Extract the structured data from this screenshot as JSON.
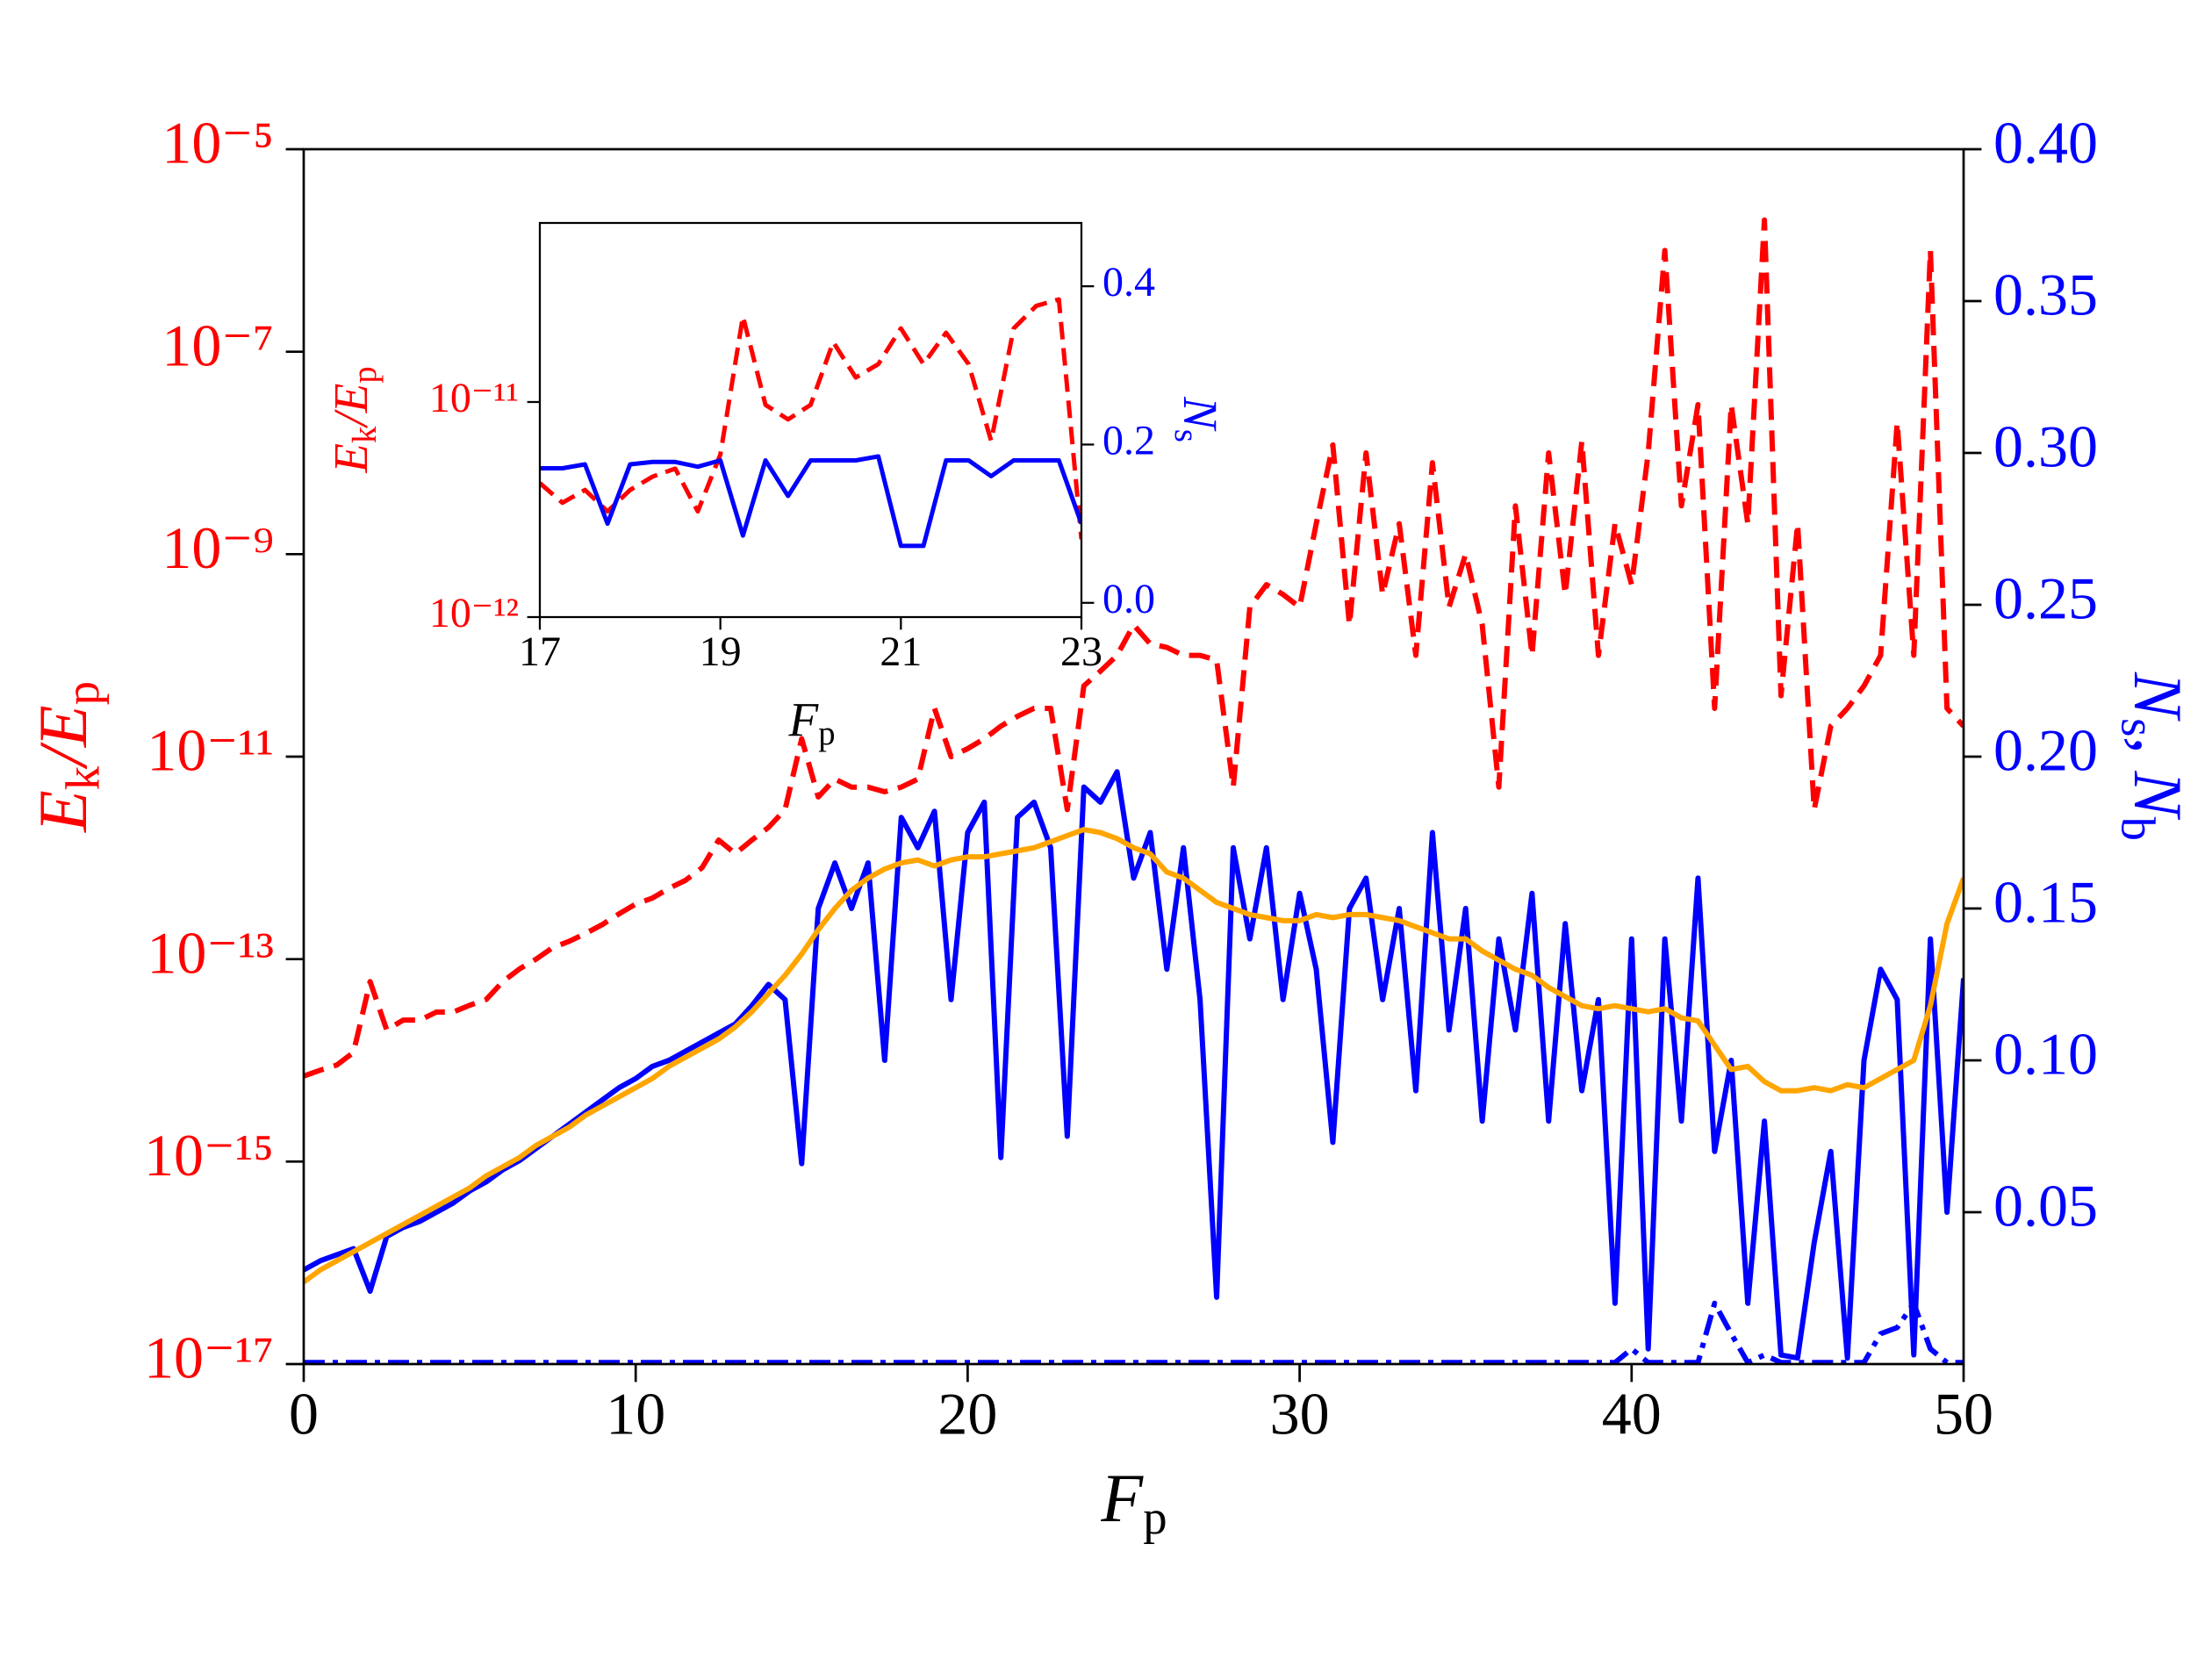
{
  "chart_data": [
    {
      "type": "line",
      "xlabel": [
        "F",
        "p"
      ],
      "ylabel": [
        "E",
        "k",
        "/E",
        "p"
      ],
      "y2label": [
        "N",
        "s",
        ", N",
        "b"
      ],
      "ycolor": "#ff0000",
      "y2color": "#0000ff",
      "xlim": [
        0,
        50
      ],
      "xticks": [
        0,
        10,
        20,
        30,
        40,
        50
      ],
      "ylog": true,
      "ylim": [
        1e-17,
        1e-05
      ],
      "yticks": [
        {
          "value": 1e-17,
          "label": "10⁻¹⁷"
        },
        {
          "value": 1e-15,
          "label": "10⁻¹⁵"
        },
        {
          "value": 1e-13,
          "label": "10⁻¹³"
        },
        {
          "value": 1e-11,
          "label": "10⁻¹¹"
        },
        {
          "value": 1e-09,
          "label": "10⁻⁹"
        },
        {
          "value": 1e-07,
          "label": "10⁻⁷"
        },
        {
          "value": 1e-05,
          "label": "10⁻⁵"
        }
      ],
      "y2lim": [
        0,
        0.4
      ],
      "y2ticks": [
        0.05,
        {
          "value": 0.1,
          "label": "0.10"
        },
        0.15,
        {
          "value": 0.2,
          "label": "0.20"
        },
        0.25,
        {
          "value": 0.3,
          "label": "0.30"
        },
        0.35,
        {
          "value": 0.4,
          "label": "0.40"
        }
      ],
      "x": [
        0,
        0.5,
        1,
        1.5,
        2,
        2.5,
        3,
        3.5,
        4,
        4.5,
        5,
        5.5,
        6,
        6.5,
        7,
        7.5,
        8,
        8.5,
        9,
        9.5,
        10,
        10.5,
        11,
        11.5,
        12,
        12.5,
        13,
        13.5,
        14,
        14.5,
        15,
        15.5,
        16,
        16.5,
        17,
        17.5,
        18,
        18.5,
        19,
        19.5,
        20,
        20.5,
        21,
        21.5,
        22,
        22.5,
        23,
        23.5,
        24,
        24.5,
        25,
        25.5,
        26,
        26.5,
        27,
        27.5,
        28,
        28.5,
        29,
        29.5,
        30,
        30.5,
        31,
        31.5,
        32,
        32.5,
        33,
        33.5,
        34,
        34.5,
        35,
        35.5,
        36,
        36.5,
        37,
        37.5,
        38,
        38.5,
        39,
        39.5,
        40,
        40.5,
        41,
        41.5,
        42,
        42.5,
        43,
        43.5,
        44,
        44.5,
        45,
        45.5,
        46,
        46.5,
        47,
        47.5,
        48,
        48.5,
        49,
        49.5,
        50
      ],
      "series": [
        {
          "color": "#ff0000",
          "linestyle": "dashed",
          "values": [
            7e-15,
            8e-15,
            9e-15,
            1.2e-14,
            6e-14,
            2e-14,
            2.5e-14,
            2.5e-14,
            3e-14,
            3e-14,
            3.5e-14,
            4e-14,
            6e-14,
            8e-14,
            1e-13,
            1.3e-13,
            1.5e-13,
            1.8e-13,
            2.2e-13,
            2.8e-13,
            3.5e-13,
            4e-13,
            5e-13,
            6e-13,
            8e-13,
            1.5e-12,
            1.1e-12,
            1.5e-12,
            2e-12,
            3e-12,
            1.5e-11,
            4e-12,
            6e-12,
            5e-12,
            5e-12,
            4.5e-12,
            5e-12,
            6e-12,
            3e-11,
            1e-11,
            1.2e-11,
            1.5e-11,
            2e-11,
            2.5e-11,
            3e-11,
            3e-11,
            3e-12,
            5e-11,
            7e-11,
            1e-10,
            2e-10,
            1.3e-10,
            1.2e-10,
            1e-10,
            1e-10,
            9e-11,
            5e-12,
            3e-10,
            5e-10,
            4e-10,
            3e-10,
            2e-09,
            1.2e-08,
            2e-10,
            1e-08,
            4e-10,
            2e-09,
            1e-10,
            8e-09,
            3e-10,
            1e-09,
            2e-10,
            5e-12,
            3e-09,
            1e-10,
            1e-08,
            4e-10,
            1.3e-08,
            1e-10,
            2e-09,
            5e-10,
            1e-08,
            1e-06,
            3e-09,
            3e-08,
            3e-11,
            3e-08,
            2e-09,
            2e-06,
            4e-11,
            2e-09,
            3e-12,
            2e-11,
            3e-11,
            5e-11,
            1e-10,
            2e-08,
            1e-10,
            1e-06,
            3e-11,
            2e-11
          ]
        },
        {
          "color": "#0000ff",
          "linestyle": "solid",
          "axis": "y2",
          "values": [
            0.031,
            0.034,
            0.036,
            0.038,
            0.024,
            0.042,
            0.045,
            0.047,
            0.05,
            0.053,
            0.057,
            0.06,
            0.064,
            0.067,
            0.071,
            0.075,
            0.079,
            0.083,
            0.087,
            0.091,
            0.094,
            0.098,
            0.1,
            0.103,
            0.106,
            0.109,
            0.112,
            0.118,
            0.125,
            0.12,
            0.066,
            0.15,
            0.165,
            0.15,
            0.165,
            0.1,
            0.18,
            0.17,
            0.182,
            0.12,
            0.175,
            0.185,
            0.068,
            0.18,
            0.185,
            0.17,
            0.075,
            0.19,
            0.185,
            0.195,
            0.16,
            0.175,
            0.13,
            0.17,
            0.12,
            0.022,
            0.17,
            0.14,
            0.17,
            0.12,
            0.155,
            0.13,
            0.073,
            0.15,
            0.16,
            0.12,
            0.15,
            0.09,
            0.175,
            0.11,
            0.15,
            0.08,
            0.14,
            0.11,
            0.155,
            0.08,
            0.145,
            0.09,
            0.12,
            0.02,
            0.14,
            0.005,
            0.14,
            0.08,
            0.16,
            0.07,
            0.1,
            0.02,
            0.08,
            0.003,
            0.002,
            0.04,
            0.07,
            0.002,
            0.1,
            0.13,
            0.12,
            0.003,
            0.14,
            0.05,
            0.127
          ]
        },
        {
          "color": "#0000ff",
          "linestyle": "dashdot",
          "axis": "y2",
          "values": [
            0.0005,
            0.0005,
            0.0005,
            0.0005,
            0.0005,
            0.0005,
            0.0005,
            0.0005,
            0.0005,
            0.0005,
            0.0005,
            0.0005,
            0.0005,
            0.0005,
            0.0005,
            0.0005,
            0.0005,
            0.0005,
            0.0005,
            0.0005,
            0.0005,
            0.0005,
            0.0005,
            0.0005,
            0.0005,
            0.0005,
            0.0005,
            0.0005,
            0.0005,
            0.0005,
            0.0005,
            0.0005,
            0.0005,
            0.0005,
            0.0005,
            0.0005,
            0.0005,
            0.0005,
            0.0005,
            0.0005,
            0.0005,
            0.0005,
            0.0005,
            0.0005,
            0.0005,
            0.0005,
            0.0005,
            0.0005,
            0.0005,
            0.0005,
            0.0005,
            0.0005,
            0.0005,
            0.0005,
            0.0005,
            0.0005,
            0.0005,
            0.0005,
            0.0005,
            0.0005,
            0.0005,
            0.0005,
            0.0005,
            0.0005,
            0.0005,
            0.0005,
            0.0005,
            0.0005,
            0.0005,
            0.0005,
            0.0005,
            0.0005,
            0.0005,
            0.0005,
            0.0005,
            0.0005,
            0.0005,
            0.0005,
            0.0005,
            0.0005,
            0.005,
            0.0005,
            0.0005,
            0.0005,
            0.0005,
            0.02,
            0.01,
            0.0005,
            0.003,
            0.0005,
            0.0005,
            0.0005,
            0.0005,
            0.0005,
            0.0005,
            0.01,
            0.012,
            0.02,
            0.005,
            0.0005,
            0.0005
          ]
        },
        {
          "color": "#ffa500",
          "linestyle": "solid",
          "axis": "y2",
          "values": [
            0.027,
            0.031,
            0.034,
            0.037,
            0.04,
            0.043,
            0.046,
            0.049,
            0.052,
            0.055,
            0.058,
            0.062,
            0.065,
            0.068,
            0.072,
            0.075,
            0.078,
            0.082,
            0.085,
            0.088,
            0.091,
            0.094,
            0.098,
            0.101,
            0.104,
            0.107,
            0.111,
            0.116,
            0.122,
            0.128,
            0.135,
            0.143,
            0.15,
            0.156,
            0.16,
            0.163,
            0.165,
            0.166,
            0.164,
            0.166,
            0.167,
            0.167,
            0.168,
            0.169,
            0.17,
            0.172,
            0.174,
            0.176,
            0.175,
            0.173,
            0.17,
            0.168,
            0.162,
            0.16,
            0.156,
            0.152,
            0.15,
            0.148,
            0.147,
            0.146,
            0.146,
            0.148,
            0.147,
            0.148,
            0.148,
            0.147,
            0.146,
            0.144,
            0.142,
            0.14,
            0.14,
            0.136,
            0.133,
            0.13,
            0.128,
            0.124,
            0.121,
            0.118,
            0.117,
            0.118,
            0.117,
            0.116,
            0.117,
            0.114,
            0.113,
            0.105,
            0.097,
            0.098,
            0.093,
            0.09,
            0.09,
            0.091,
            0.09,
            0.092,
            0.091,
            0.094,
            0.097,
            0.1,
            0.118,
            0.145,
            0.16
          ]
        }
      ]
    },
    {
      "type": "line",
      "xlabel": [
        "F",
        "p"
      ],
      "ylabel": [
        "E",
        "k",
        "/E",
        "p"
      ],
      "y2label": [
        "N",
        "s"
      ],
      "ycolor": "#ff0000",
      "y2color": "#0000ff",
      "xlim": [
        17,
        23
      ],
      "xticks": [
        17,
        19,
        21,
        23
      ],
      "ylog": true,
      "ylim": [
        1e-12,
        6.8e-11
      ],
      "yticks": [
        {
          "value": 1e-12,
          "label": "10⁻¹²"
        },
        {
          "value": 1e-11,
          "label": "10⁻¹¹"
        }
      ],
      "y2lim": [
        -0.018,
        0.48
      ],
      "y2ticks": [
        {
          "value": 0,
          "label": "0.0"
        },
        0.2,
        0.4
      ],
      "x": [
        17,
        17.25,
        17.5,
        17.75,
        18,
        18.25,
        18.5,
        18.75,
        19,
        19.25,
        19.5,
        19.75,
        20,
        20.25,
        20.5,
        20.75,
        21,
        21.25,
        21.5,
        21.75,
        22,
        22.25,
        22.5,
        22.75,
        23
      ],
      "series": [
        {
          "color": "#ff0000",
          "linestyle": "dashed",
          "values": [
            4.2e-12,
            3.4e-12,
            3.9e-12,
            3.1e-12,
            3.9e-12,
            4.5e-12,
            4.9e-12,
            3.1e-12,
            5.7e-12,
            2.5e-11,
            9.7e-12,
            8.3e-12,
            9.7e-12,
            1.9e-11,
            1.3e-11,
            1.5e-11,
            2.2e-11,
            1.5e-11,
            2.1e-11,
            1.5e-11,
            6.6e-12,
            2.2e-11,
            2.8e-11,
            3e-11,
            2.3e-12
          ]
        },
        {
          "color": "#0000ff",
          "linestyle": "solid",
          "axis": "y2",
          "values": [
            0.17,
            0.17,
            0.175,
            0.1,
            0.175,
            0.178,
            0.178,
            0.172,
            0.18,
            0.085,
            0.18,
            0.135,
            0.18,
            0.18,
            0.18,
            0.185,
            0.072,
            0.072,
            0.18,
            0.18,
            0.16,
            0.18,
            0.18,
            0.18,
            0.1
          ]
        }
      ]
    }
  ]
}
